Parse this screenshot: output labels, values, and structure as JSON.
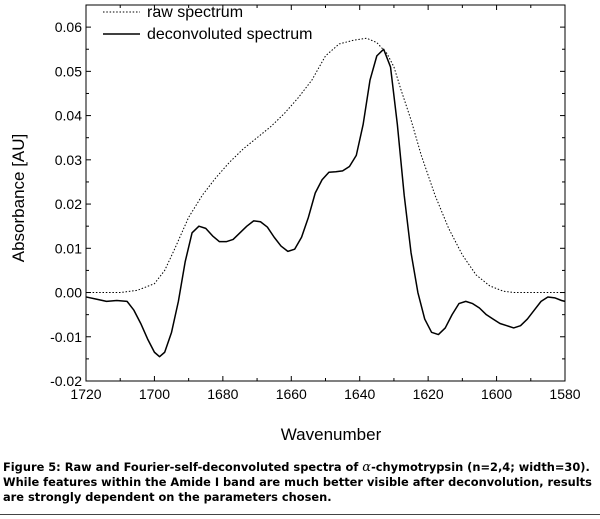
{
  "chart_data": {
    "type": "line",
    "title": "",
    "xlabel": "Wavenumber",
    "ylabel": "Absorbance [AU]",
    "xlim": [
      1720,
      1580
    ],
    "ylim": [
      -0.02,
      0.065
    ],
    "x_ticks": [
      "1720",
      "1700",
      "1680",
      "1660",
      "1640",
      "1620",
      "1600",
      "1580"
    ],
    "y_ticks": [
      "-0.02",
      "-0.01",
      "0.00",
      "0.01",
      "0.02",
      "0.03",
      "0.04",
      "0.05",
      "0.06"
    ],
    "grid": false,
    "legend_position": "top-left",
    "series": [
      {
        "name": "raw spectrum",
        "style": "dotted",
        "x": [
          1720,
          1715,
          1710,
          1705,
          1700,
          1697,
          1694,
          1690,
          1686,
          1682,
          1678,
          1674,
          1670,
          1666,
          1662,
          1658,
          1654,
          1650,
          1646,
          1642,
          1638,
          1635,
          1632,
          1630,
          1628,
          1625,
          1622,
          1618,
          1614,
          1610,
          1606,
          1602,
          1598,
          1595,
          1590,
          1585,
          1580
        ],
        "y": [
          0.0,
          0.0,
          0.0,
          0.0005,
          0.002,
          0.005,
          0.01,
          0.017,
          0.022,
          0.026,
          0.0295,
          0.0325,
          0.035,
          0.0375,
          0.0405,
          0.044,
          0.048,
          0.0535,
          0.0562,
          0.057,
          0.0575,
          0.0565,
          0.054,
          0.051,
          0.046,
          0.039,
          0.031,
          0.022,
          0.0145,
          0.0085,
          0.004,
          0.0015,
          0.0003,
          0.0,
          0.0,
          0.0,
          0.0
        ]
      },
      {
        "name": "deconvoluted spectrum",
        "style": "solid",
        "x": [
          1720,
          1717,
          1714,
          1711,
          1708,
          1706,
          1704,
          1702,
          1700,
          1698.5,
          1697,
          1695,
          1693,
          1691,
          1689,
          1687,
          1685,
          1683,
          1681,
          1679,
          1677,
          1675,
          1673,
          1671,
          1669,
          1667,
          1665,
          1663,
          1661,
          1659,
          1657,
          1655,
          1653,
          1651,
          1649,
          1647,
          1645,
          1643,
          1641,
          1639,
          1637,
          1635,
          1633,
          1631,
          1629,
          1627,
          1625,
          1623,
          1621,
          1619,
          1617,
          1615,
          1613,
          1611,
          1609,
          1607,
          1605,
          1603,
          1601,
          1599,
          1597,
          1595,
          1593,
          1591,
          1589,
          1587,
          1585,
          1583,
          1581,
          1580
        ],
        "y": [
          -0.001,
          -0.0015,
          -0.002,
          -0.0018,
          -0.002,
          -0.004,
          -0.007,
          -0.0105,
          -0.0135,
          -0.0145,
          -0.0135,
          -0.009,
          -0.002,
          0.007,
          0.0135,
          0.015,
          0.0145,
          0.0128,
          0.0115,
          0.0115,
          0.012,
          0.0135,
          0.015,
          0.0162,
          0.016,
          0.0148,
          0.0125,
          0.0105,
          0.0093,
          0.0098,
          0.0125,
          0.017,
          0.0225,
          0.0255,
          0.0272,
          0.0273,
          0.0275,
          0.0285,
          0.031,
          0.038,
          0.048,
          0.0535,
          0.055,
          0.051,
          0.038,
          0.022,
          0.009,
          0.0,
          -0.006,
          -0.009,
          -0.0095,
          -0.008,
          -0.005,
          -0.0025,
          -0.002,
          -0.0025,
          -0.0035,
          -0.005,
          -0.006,
          -0.007,
          -0.0075,
          -0.008,
          -0.0075,
          -0.006,
          -0.004,
          -0.002,
          -0.001,
          -0.0012,
          -0.0018,
          -0.002
        ]
      }
    ]
  },
  "caption": {
    "prefix": "Figure 5: Raw and Fourier-self-deconvoluted spectra of ",
    "greek": "α",
    "suffix": "-chymotrypsin (n=2,4; width=30). While features within the Amide I band are much better visible after deconvolution, results are strongly dependent on the parameters chosen."
  }
}
